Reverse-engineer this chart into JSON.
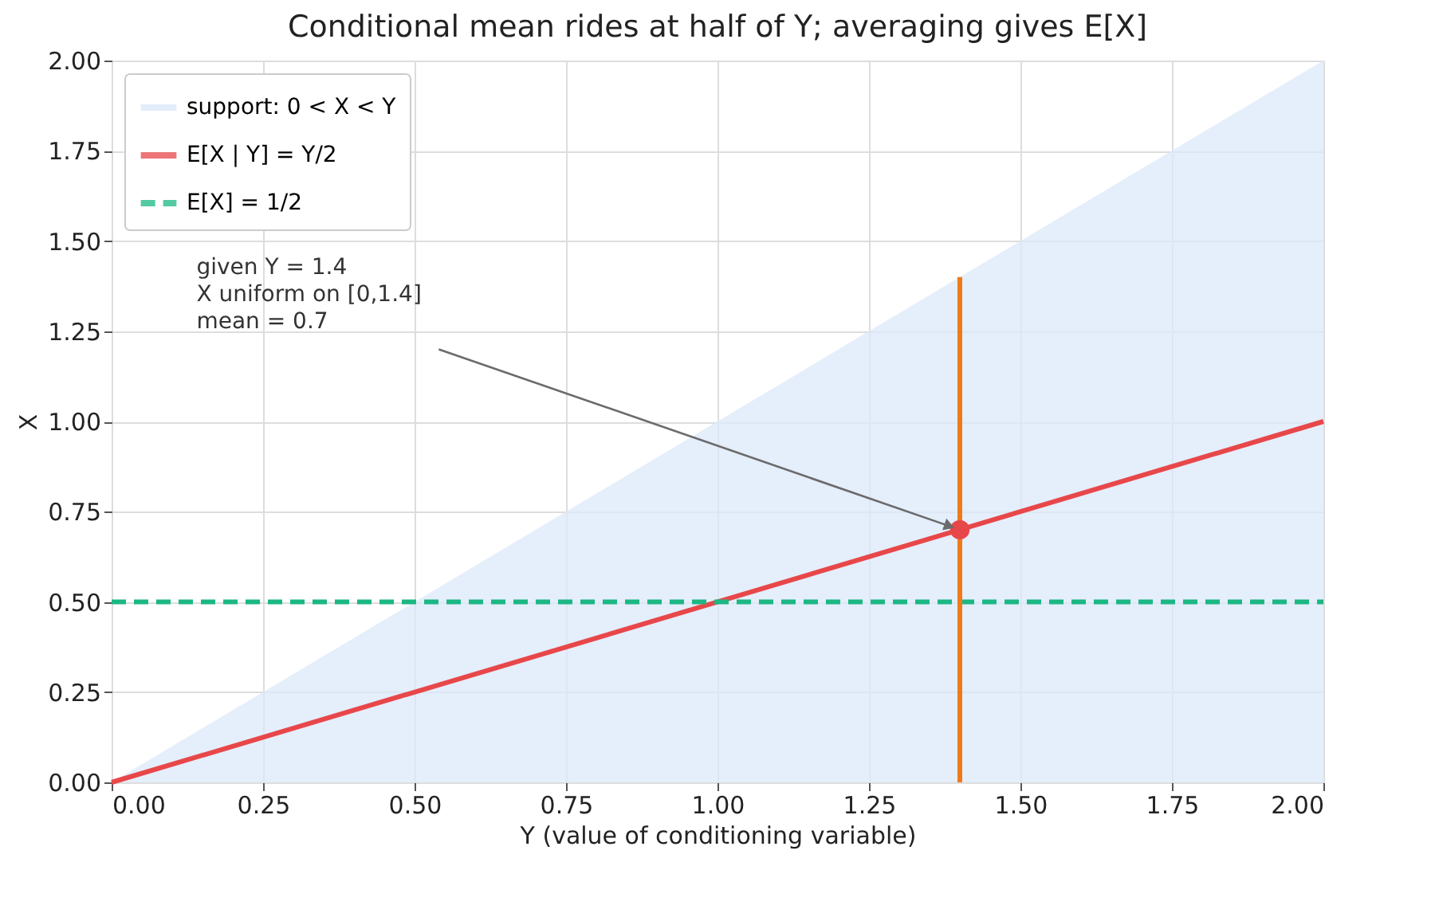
{
  "chart_data": {
    "type": "line",
    "title": "Conditional mean rides at half of Y;  averaging gives E[X]",
    "xlabel": "Y  (value of conditioning variable)",
    "ylabel": "X",
    "xlim": [
      0,
      2
    ],
    "ylim": [
      0,
      2
    ],
    "xticks": [
      {
        "value": 0,
        "label": "0.00"
      },
      {
        "value": 0.25,
        "label": "0.25"
      },
      {
        "value": 0.5,
        "label": "0.50"
      },
      {
        "value": 0.75,
        "label": "0.75"
      },
      {
        "value": 1,
        "label": "1.00"
      },
      {
        "value": 1.25,
        "label": "1.25"
      },
      {
        "value": 1.5,
        "label": "1.50"
      },
      {
        "value": 1.75,
        "label": "1.75"
      },
      {
        "value": 2,
        "label": "2.00"
      }
    ],
    "yticks": [
      {
        "value": 0,
        "label": "0.00"
      },
      {
        "value": 0.25,
        "label": "0.25"
      },
      {
        "value": 0.5,
        "label": "0.50"
      },
      {
        "value": 0.75,
        "label": "0.75"
      },
      {
        "value": 1,
        "label": "1.00"
      },
      {
        "value": 1.25,
        "label": "1.25"
      },
      {
        "value": 1.5,
        "label": "1.50"
      },
      {
        "value": 1.75,
        "label": "1.75"
      },
      {
        "value": 2,
        "label": "2.00"
      }
    ],
    "grid": true,
    "legend": "top left",
    "series": [
      {
        "type": "area",
        "name": "support: 0 < X < Y",
        "color": "#dce8fa",
        "x": [
          0,
          2
        ],
        "values": [
          0,
          2
        ]
      },
      {
        "type": "line",
        "name": "E[X | Y] = Y/2",
        "color": "#e8474a",
        "x": [
          0,
          2
        ],
        "values": [
          0,
          1
        ],
        "line_style": "solid"
      },
      {
        "type": "line",
        "name": "E[X] = 1/2",
        "color": "#1cb784",
        "x": [
          0,
          2
        ],
        "values": [
          0.5,
          0.5
        ],
        "line_style": "dashed"
      },
      {
        "color": "#f07a1a",
        "x": [
          1.4,
          1.4
        ],
        "values": [
          0,
          1.4
        ],
        "line_style": "solid"
      },
      {
        "type": "scatter",
        "color": "#e8474a",
        "x": [
          1.4
        ],
        "values": [
          0.7
        ],
        "marker": "circle"
      }
    ],
    "annotations": [
      {
        "text": "given Y = 1.4\nX uniform on [0,1.4]\nmean = 0.7",
        "x": 1.4,
        "y": 0.7
      }
    ]
  }
}
